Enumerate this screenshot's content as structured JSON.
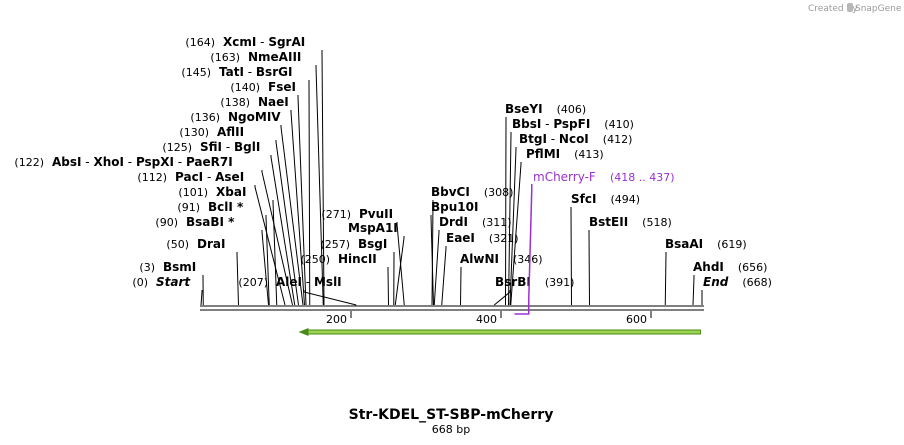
{
  "credit": {
    "prefix": "Created by",
    "brand": "SnapGene"
  },
  "sequence": {
    "name": "Str-KDEL_ST-SBP-mCherry",
    "length_label": "668 bp",
    "length": 668
  },
  "colors": {
    "primer": "#9b30d0",
    "feature_fill": "#9ad450",
    "feature_stroke": "#4a8a18",
    "backbone": "#000000"
  },
  "ruler": {
    "ticks": [
      200,
      400,
      600
    ]
  },
  "sites": [
    {
      "id": "s-start",
      "pos": "(0)",
      "at": 0,
      "parts": [
        "Start"
      ],
      "italic": true
    },
    {
      "id": "s-bsmi",
      "pos": "(3)",
      "at": 3,
      "parts": [
        "BsmI"
      ]
    },
    {
      "id": "s-drai",
      "pos": "(50)",
      "at": 50,
      "parts": [
        "DraI"
      ]
    },
    {
      "id": "s-bsabi",
      "pos": "(90)",
      "at": 90,
      "parts": [
        "BsaBI *"
      ]
    },
    {
      "id": "s-bcli",
      "pos": "(91)",
      "at": 91,
      "parts": [
        "BclI *"
      ]
    },
    {
      "id": "s-xbai",
      "pos": "(101)",
      "at": 101,
      "parts": [
        "XbaI"
      ]
    },
    {
      "id": "s-paci",
      "pos": "(112)",
      "at": 112,
      "parts": [
        "PacI",
        "AseI"
      ]
    },
    {
      "id": "s-absi",
      "pos": "(122)",
      "at": 122,
      "parts": [
        "AbsI",
        "XhoI",
        "PspXI",
        "PaeR7I"
      ]
    },
    {
      "id": "s-sfii",
      "pos": "(125)",
      "at": 125,
      "parts": [
        "SfiI",
        "BglI"
      ]
    },
    {
      "id": "s-aflii",
      "pos": "(130)",
      "at": 130,
      "parts": [
        "AflII"
      ]
    },
    {
      "id": "s-ngomiv",
      "pos": "(136)",
      "at": 136,
      "parts": [
        "NgoMIV"
      ]
    },
    {
      "id": "s-naei",
      "pos": "(138)",
      "at": 138,
      "parts": [
        "NaeI"
      ]
    },
    {
      "id": "s-fsei",
      "pos": "(140)",
      "at": 140,
      "parts": [
        "FseI"
      ]
    },
    {
      "id": "s-tati",
      "pos": "(145)",
      "at": 145,
      "parts": [
        "TatI",
        "BsrGI"
      ]
    },
    {
      "id": "s-nmeaiii",
      "pos": "(163)",
      "at": 163,
      "parts": [
        "NmeAIII"
      ]
    },
    {
      "id": "s-xcmi",
      "pos": "(164)",
      "at": 164,
      "parts": [
        "XcmI",
        "SgrAI"
      ]
    },
    {
      "id": "s-alei",
      "pos": "(207)",
      "at": 207,
      "parts": [
        "AleI",
        "MslI"
      ]
    },
    {
      "id": "s-hincii",
      "pos": "(250)",
      "at": 250,
      "parts": [
        "HincII"
      ]
    },
    {
      "id": "s-bsgi",
      "pos": "(257)",
      "at": 257,
      "parts": [
        "BsgI"
      ]
    },
    {
      "id": "s-mspa1i",
      "pos": "",
      "at": 259,
      "parts": [
        "MspA1I"
      ]
    },
    {
      "id": "s-pvuii",
      "pos": "(271)",
      "at": 271,
      "parts": [
        "PvuII"
      ]
    },
    {
      "id": "s-bbvci",
      "pos": "(308)",
      "at": 308,
      "parts": [
        "BbvCI"
      ]
    },
    {
      "id": "s-bpu10i",
      "pos": "",
      "at": 310,
      "parts": [
        "Bpu10I"
      ]
    },
    {
      "id": "s-drdi",
      "pos": "(311)",
      "at": 311,
      "parts": [
        "DrdI"
      ]
    },
    {
      "id": "s-eaei",
      "pos": "(321)",
      "at": 321,
      "parts": [
        "EaeI"
      ]
    },
    {
      "id": "s-alwni",
      "pos": "(346)",
      "at": 346,
      "parts": [
        "AlwNI"
      ]
    },
    {
      "id": "s-bsrbi",
      "pos": "(391)",
      "at": 391,
      "parts": [
        "BsrBI"
      ]
    },
    {
      "id": "s-bseyi",
      "pos": "(406)",
      "at": 406,
      "parts": [
        "BseYI"
      ]
    },
    {
      "id": "s-bbsi",
      "pos": "(410)",
      "at": 410,
      "parts": [
        "BbsI",
        "PspFI"
      ]
    },
    {
      "id": "s-btgi",
      "pos": "(412)",
      "at": 412,
      "parts": [
        "BtgI",
        "NcoI"
      ]
    },
    {
      "id": "s-pflmi",
      "pos": "(413)",
      "at": 413,
      "parts": [
        "PflMI"
      ]
    },
    {
      "id": "s-sfci",
      "pos": "(494)",
      "at": 494,
      "parts": [
        "SfcI"
      ]
    },
    {
      "id": "s-bsteii",
      "pos": "(518)",
      "at": 518,
      "parts": [
        "BstEII"
      ]
    },
    {
      "id": "s-bsaai",
      "pos": "(619)",
      "at": 619,
      "parts": [
        "BsaAI"
      ]
    },
    {
      "id": "s-ahdi",
      "pos": "(656)",
      "at": 656,
      "parts": [
        "AhdI"
      ]
    },
    {
      "id": "s-end",
      "pos": "(668)",
      "at": 668,
      "parts": [
        "End"
      ],
      "italic": true
    }
  ],
  "primer": {
    "name": "mCherry-F",
    "range": "(418 .. 437)",
    "start": 418,
    "end": 437
  },
  "feature": {
    "start": 130,
    "end": 666,
    "direction": "reverse"
  }
}
